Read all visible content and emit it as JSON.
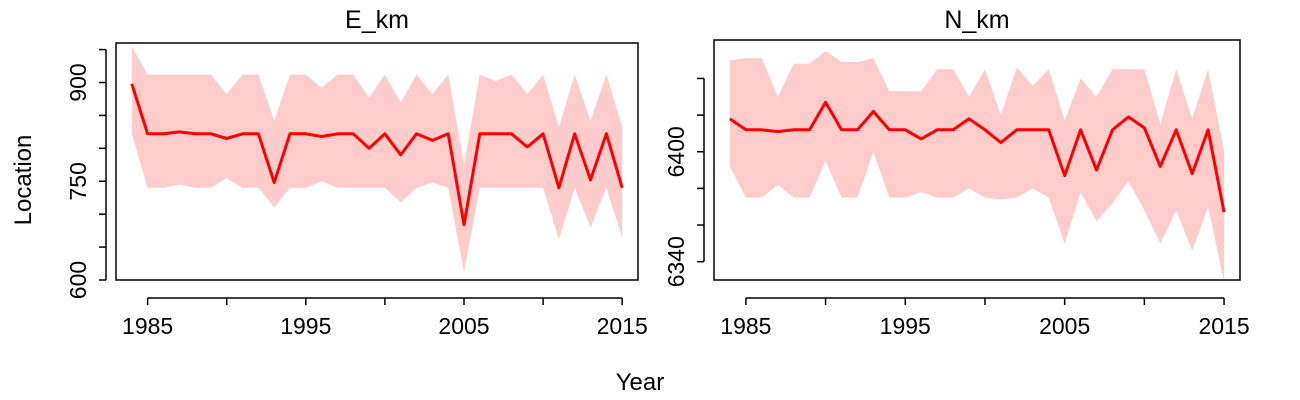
{
  "figure": {
    "xlabel": "Year",
    "ylabel": "Location"
  },
  "chart_data": [
    {
      "type": "line",
      "title": "E_km",
      "xlabel": "Year",
      "ylabel": "Location",
      "xlim": [
        1983,
        2016
      ],
      "ylim": [
        600,
        960
      ],
      "x_ticks": [
        1985,
        1990,
        1995,
        2000,
        2005,
        2010,
        2015
      ],
      "x_tick_labels": [
        "1985",
        "1995",
        "2005",
        "2015"
      ],
      "y_ticks": [
        600,
        650,
        700,
        750,
        800,
        850,
        900,
        950
      ],
      "y_tick_labels": [
        "600",
        "750",
        "900"
      ],
      "colors": {
        "line": "#ff0000",
        "band": "#ffcccc"
      },
      "x": [
        1984,
        1985,
        1986,
        1987,
        1988,
        1989,
        1990,
        1991,
        1992,
        1993,
        1994,
        1995,
        1996,
        1997,
        1998,
        1999,
        2000,
        2001,
        2002,
        2003,
        2004,
        2005,
        2006,
        2007,
        2008,
        2009,
        2010,
        2011,
        2012,
        2013,
        2014,
        2015
      ],
      "series": [
        {
          "values": [
            898,
            822,
            822,
            825,
            822,
            822,
            815,
            822,
            822,
            748,
            822,
            822,
            818,
            822,
            822,
            800,
            822,
            790,
            822,
            812,
            822,
            684,
            822,
            822,
            822,
            802,
            822,
            740,
            822,
            752,
            822,
            740
          ]
        }
      ],
      "band_upper": [
        955,
        912,
        912,
        912,
        912,
        912,
        882,
        912,
        912,
        842,
        912,
        912,
        892,
        912,
        912,
        877,
        912,
        870,
        912,
        882,
        912,
        775,
        912,
        902,
        912,
        882,
        912,
        832,
        912,
        842,
        912,
        832
      ],
      "band_lower": [
        822,
        740,
        740,
        745,
        740,
        740,
        755,
        740,
        740,
        710,
        740,
        740,
        750,
        740,
        740,
        740,
        740,
        718,
        740,
        748,
        740,
        612,
        740,
        740,
        740,
        740,
        740,
        662,
        740,
        680,
        740,
        665
      ]
    },
    {
      "type": "line",
      "title": "N_km",
      "xlabel": "Year",
      "ylabel": "Location",
      "xlim": [
        1983,
        2016
      ],
      "ylim": [
        6330,
        6461
      ],
      "x_ticks": [
        1985,
        1990,
        1995,
        2000,
        2005,
        2010,
        2015
      ],
      "x_tick_labels": [
        "1985",
        "1995",
        "2005",
        "2015"
      ],
      "y_ticks": [
        6340,
        6360,
        6380,
        6400,
        6420,
        6440
      ],
      "y_tick_labels": [
        "6340",
        "6400"
      ],
      "colors": {
        "line": "#ff0000",
        "band": "#ffcccc"
      },
      "x": [
        1984,
        1985,
        1986,
        1987,
        1988,
        1989,
        1990,
        1991,
        1992,
        1993,
        1994,
        1995,
        1996,
        1997,
        1998,
        1999,
        2000,
        2001,
        2002,
        2003,
        2004,
        2005,
        2006,
        2007,
        2008,
        2009,
        2010,
        2011,
        2012,
        2013,
        2014,
        2015
      ],
      "series": [
        {
          "values": [
            6418,
            6412,
            6412,
            6411,
            6412,
            6412,
            6427,
            6412,
            6412,
            6422,
            6412,
            6412,
            6407,
            6412,
            6412,
            6418,
            6412,
            6405,
            6412,
            6412,
            6412,
            6387,
            6412,
            6390,
            6412,
            6419,
            6413,
            6392,
            6412,
            6388,
            6412,
            6367
          ]
        }
      ],
      "band_upper": [
        6450,
        6451,
        6451,
        6430,
        6448,
        6448,
        6455,
        6449,
        6449,
        6451,
        6433,
        6433,
        6433,
        6445,
        6445,
        6430,
        6445,
        6420,
        6446,
        6436,
        6445,
        6417,
        6440,
        6430,
        6445,
        6445,
        6445,
        6415,
        6445,
        6418,
        6445,
        6400
      ],
      "band_lower": [
        6392,
        6375,
        6375,
        6382,
        6375,
        6375,
        6395,
        6375,
        6375,
        6400,
        6375,
        6375,
        6378,
        6375,
        6375,
        6380,
        6375,
        6374,
        6375,
        6380,
        6375,
        6350,
        6378,
        6362,
        6372,
        6384,
        6368,
        6350,
        6368,
        6346,
        6370,
        6329
      ]
    }
  ]
}
